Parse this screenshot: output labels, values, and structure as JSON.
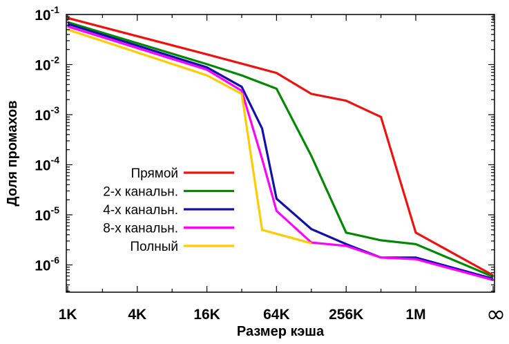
{
  "chart_data": {
    "type": "line",
    "title": "",
    "xlabel": "Размер кэша",
    "ylabel": "Доля промахов",
    "y_scale": "log",
    "ylim": [
      3e-07,
      0.1
    ],
    "x_ticks": [
      {
        "label": "1K",
        "x": 1
      },
      {
        "label": "4K",
        "x": 4
      },
      {
        "label": "16K",
        "x": 16
      },
      {
        "label": "64K",
        "x": 64
      },
      {
        "label": "256K",
        "x": 256
      },
      {
        "label": "1M",
        "x": 1024
      },
      {
        "label": "∞",
        "x": "inf"
      }
    ],
    "y_ticks": [
      {
        "base": "10",
        "exp": "-1",
        "value": 0.1
      },
      {
        "base": "10",
        "exp": "-2",
        "value": 0.01
      },
      {
        "base": "10",
        "exp": "-3",
        "value": 0.001
      },
      {
        "base": "10",
        "exp": "-4",
        "value": 0.0001
      },
      {
        "base": "10",
        "exp": "-5",
        "value": 1e-05
      },
      {
        "base": "10",
        "exp": "-6",
        "value": 1e-06
      }
    ],
    "grid": false,
    "legend_position": "bottom-left",
    "x": [
      1,
      16,
      64,
      128,
      256,
      512,
      1024,
      "inf"
    ],
    "series": [
      {
        "name": "Прямой",
        "color": "#ee1111",
        "points": [
          [
            1,
            0.085
          ],
          [
            16,
            0.016
          ],
          [
            64,
            0.0068
          ],
          [
            128,
            0.0026
          ],
          [
            256,
            0.0019
          ],
          [
            512,
            0.0009
          ],
          [
            1024,
            4.4e-06
          ],
          [
            "inf",
            6.2e-07
          ]
        ]
      },
      {
        "name": "2-х канальн.",
        "color": "#008800",
        "points": [
          [
            1,
            0.07
          ],
          [
            16,
            0.0102
          ],
          [
            32,
            0.0061
          ],
          [
            64,
            0.0033
          ],
          [
            128,
            0.00015
          ],
          [
            256,
            4.4e-06
          ],
          [
            512,
            3.1e-06
          ],
          [
            1024,
            2.6e-06
          ],
          [
            "inf",
            5.8e-07
          ]
        ]
      },
      {
        "name": "4-х канальн.",
        "color": "#1111aa",
        "points": [
          [
            1,
            0.065
          ],
          [
            16,
            0.0088
          ],
          [
            32,
            0.0036
          ],
          [
            48,
            0.00053
          ],
          [
            64,
            2.1e-05
          ],
          [
            128,
            5.2e-06
          ],
          [
            256,
            2.6e-06
          ],
          [
            512,
            1.4e-06
          ],
          [
            1024,
            1.4e-06
          ],
          [
            "inf",
            5.3e-07
          ]
        ]
      },
      {
        "name": "8-х канальн.",
        "color": "#ff00ff",
        "points": [
          [
            1,
            0.058
          ],
          [
            16,
            0.0079
          ],
          [
            32,
            0.003
          ],
          [
            48,
            0.00013
          ],
          [
            64,
            1.2e-05
          ],
          [
            128,
            2.8e-06
          ],
          [
            256,
            2.4e-06
          ],
          [
            512,
            1.4e-06
          ],
          [
            1024,
            1.3e-06
          ],
          [
            "inf",
            5e-07
          ]
        ]
      },
      {
        "name": "Полный",
        "color": "#ffcc00",
        "points": [
          [
            1,
            0.05
          ],
          [
            16,
            0.0061
          ],
          [
            32,
            0.0026
          ],
          [
            48,
            5e-06
          ],
          [
            128,
            2.7e-06
          ]
        ]
      }
    ]
  }
}
